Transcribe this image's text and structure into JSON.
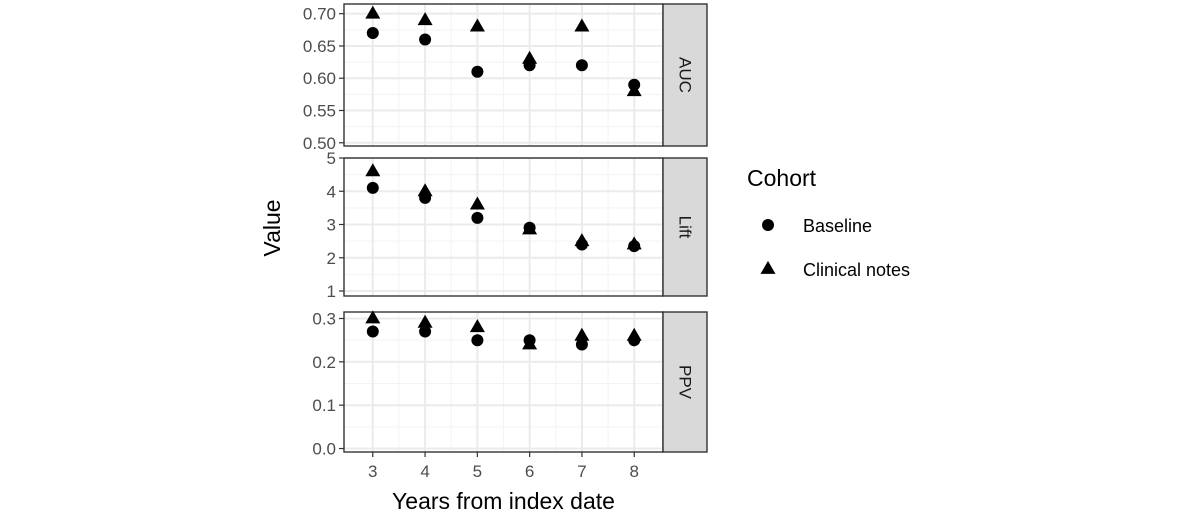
{
  "chart_data": {
    "type": "scatter",
    "layout": "faceted (3 panels stacked vertically, shared x axis)",
    "xlabel": "Years from index date",
    "ylabel": "Value",
    "x": [
      3,
      4,
      5,
      6,
      7,
      8
    ],
    "x_ticks": [
      "3",
      "4",
      "5",
      "6",
      "7",
      "8"
    ],
    "grid": true,
    "legend": {
      "title": "Cohort",
      "position": "right",
      "entries": [
        {
          "label": "Baseline",
          "shape": "circle"
        },
        {
          "label": "Clinical notes",
          "shape": "triangle"
        }
      ]
    },
    "colors": {
      "points": "#000000",
      "grid": "#ebebeb",
      "strip": "#d9d9d9",
      "frame": "#333333"
    },
    "facets": [
      {
        "label": "AUC",
        "ylim": [
          0.495,
          0.715
        ],
        "y_ticks": [
          "0.50",
          "0.55",
          "0.60",
          "0.65",
          "0.70"
        ],
        "y_tick_values": [
          0.5,
          0.55,
          0.6,
          0.65,
          0.7
        ],
        "series": [
          {
            "name": "Baseline",
            "values": [
              0.67,
              0.66,
              0.61,
              0.62,
              0.62,
              0.59
            ]
          },
          {
            "name": "Clinical notes",
            "values": [
              0.7,
              0.69,
              0.68,
              0.63,
              0.68,
              0.58
            ]
          }
        ]
      },
      {
        "label": "Lift",
        "ylim": [
          0.85,
          5.0
        ],
        "y_ticks": [
          "1",
          "2",
          "3",
          "4",
          "5"
        ],
        "y_tick_values": [
          1,
          2,
          3,
          4,
          5
        ],
        "series": [
          {
            "name": "Baseline",
            "values": [
              4.1,
              3.8,
              3.2,
              2.9,
              2.4,
              2.35
            ]
          },
          {
            "name": "Clinical notes",
            "values": [
              4.6,
              4.0,
              3.6,
              2.85,
              2.5,
              2.4
            ]
          }
        ]
      },
      {
        "label": "PPV",
        "ylim": [
          -0.008,
          0.315
        ],
        "y_ticks": [
          "0.0",
          "0.1",
          "0.2",
          "0.3"
        ],
        "y_tick_values": [
          0.0,
          0.1,
          0.2,
          0.3
        ],
        "series": [
          {
            "name": "Baseline",
            "values": [
              0.27,
              0.27,
              0.25,
              0.25,
              0.24,
              0.25
            ]
          },
          {
            "name": "Clinical notes",
            "values": [
              0.3,
              0.29,
              0.28,
              0.24,
              0.26,
              0.26
            ]
          }
        ]
      }
    ]
  }
}
